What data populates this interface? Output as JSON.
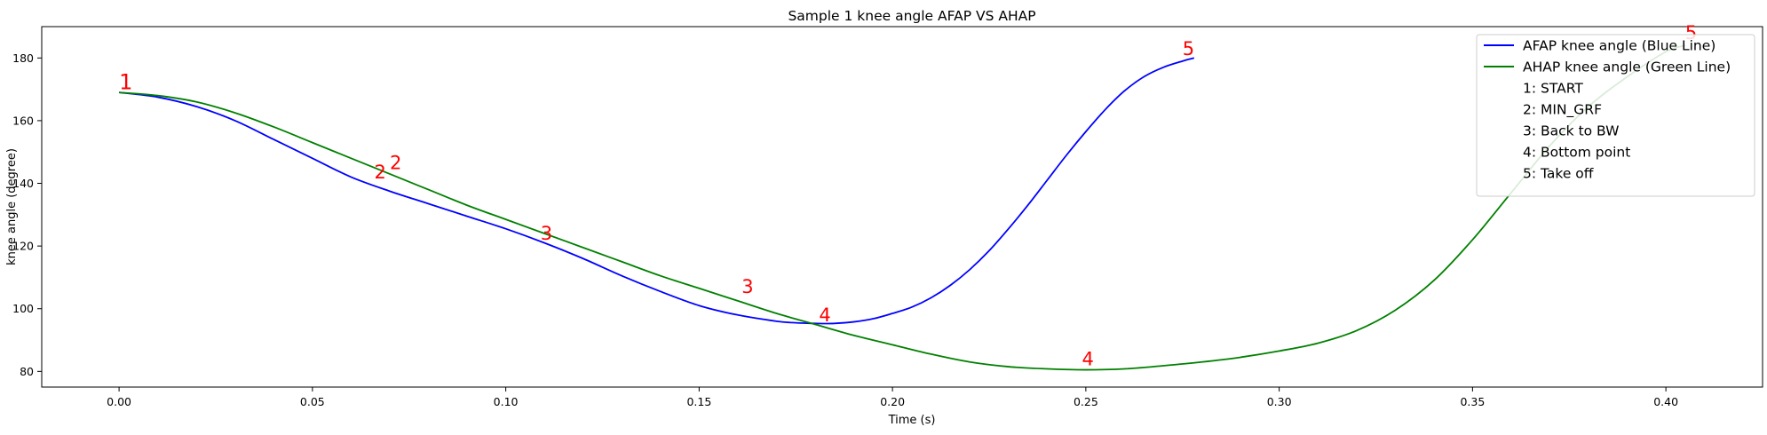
{
  "chart_data": {
    "type": "line",
    "title": "Sample 1 knee angle AFAP VS AHAP",
    "xlabel": "Time (s)",
    "ylabel": "knee angle (degree)",
    "xlim": [
      -0.02,
      0.425
    ],
    "ylim": [
      75,
      190
    ],
    "xticks": [
      0.0,
      0.05,
      0.1,
      0.15,
      0.2,
      0.25,
      0.3,
      0.35,
      0.4
    ],
    "xtick_labels": [
      "0.00",
      "0.05",
      "0.10",
      "0.15",
      "0.20",
      "0.25",
      "0.30",
      "0.35",
      "0.40"
    ],
    "yticks": [
      80,
      100,
      120,
      140,
      160,
      180
    ],
    "ytick_labels": [
      "80",
      "100",
      "120",
      "140",
      "160",
      "180"
    ],
    "grid": false,
    "legend_position": "top-right",
    "legend": [
      {
        "label": "AFAP knee angle (Blue Line)",
        "color": "#0000ff",
        "line": true
      },
      {
        "label": "AHAP knee angle (Green Line)",
        "color": "#008000",
        "line": true
      },
      {
        "label": "1: START",
        "line": false
      },
      {
        "label": "2: MIN_GRF",
        "line": false
      },
      {
        "label": "3: Back to BW",
        "line": false
      },
      {
        "label": "4: Bottom point",
        "line": false
      },
      {
        "label": "5: Take off",
        "line": false
      }
    ],
    "series": [
      {
        "name": "AFAP knee angle (Blue Line)",
        "color": "#0000ff",
        "x": [
          0.0,
          0.01,
          0.02,
          0.03,
          0.04,
          0.05,
          0.06,
          0.07,
          0.08,
          0.09,
          0.1,
          0.11,
          0.12,
          0.13,
          0.14,
          0.15,
          0.16,
          0.17,
          0.175,
          0.18,
          0.185,
          0.19,
          0.195,
          0.2,
          0.205,
          0.21,
          0.215,
          0.22,
          0.225,
          0.23,
          0.235,
          0.24,
          0.245,
          0.25,
          0.255,
          0.26,
          0.265,
          0.27,
          0.275,
          0.278
        ],
        "y": [
          169,
          167.5,
          164.5,
          160,
          154,
          148,
          142,
          137.5,
          133.5,
          129.5,
          125.5,
          121,
          116,
          110.5,
          105.5,
          101,
          98,
          96,
          95.5,
          95.3,
          95.3,
          95.8,
          96.8,
          98.5,
          100.5,
          103.5,
          107.5,
          112.5,
          118.5,
          125.5,
          133,
          141,
          149,
          156.5,
          163.5,
          169.5,
          174,
          177,
          179,
          180
        ]
      },
      {
        "name": "AHAP knee angle (Green Line)",
        "color": "#008000",
        "x": [
          0.0,
          0.01,
          0.02,
          0.03,
          0.04,
          0.05,
          0.06,
          0.07,
          0.08,
          0.09,
          0.1,
          0.11,
          0.12,
          0.13,
          0.14,
          0.15,
          0.16,
          0.17,
          0.18,
          0.19,
          0.2,
          0.21,
          0.22,
          0.23,
          0.24,
          0.25,
          0.26,
          0.27,
          0.28,
          0.29,
          0.3,
          0.31,
          0.32,
          0.33,
          0.34,
          0.35,
          0.36,
          0.37,
          0.38,
          0.39,
          0.4,
          0.405
        ],
        "y": [
          169,
          168,
          166,
          162.5,
          158,
          153,
          148,
          143,
          138,
          133,
          128.5,
          124,
          119.5,
          115,
          110.5,
          106.5,
          102.5,
          98.5,
          95,
          91.5,
          88.5,
          85.5,
          83,
          81.5,
          80.8,
          80.5,
          80.8,
          81.8,
          83,
          84.5,
          86.5,
          89,
          93,
          99.5,
          109,
          122,
          137,
          152,
          164.5,
          174,
          182,
          184
        ]
      }
    ],
    "annotations": [
      {
        "text": "1",
        "x": 0.0,
        "y": 170,
        "size": 24
      },
      {
        "text": "2",
        "x": 0.066,
        "y": 141.5,
        "size": 21
      },
      {
        "text": "2",
        "x": 0.07,
        "y": 144.5,
        "size": 21
      },
      {
        "text": "3",
        "x": 0.109,
        "y": 122,
        "size": 21
      },
      {
        "text": "3",
        "x": 0.161,
        "y": 105,
        "size": 21
      },
      {
        "text": "4",
        "x": 0.181,
        "y": 96,
        "size": 21
      },
      {
        "text": "4",
        "x": 0.249,
        "y": 82,
        "size": 21
      },
      {
        "text": "5",
        "x": 0.275,
        "y": 181,
        "size": 21
      },
      {
        "text": "5",
        "x": 0.405,
        "y": 186,
        "size": 21
      }
    ],
    "annotation_color": "#ff0000"
  }
}
